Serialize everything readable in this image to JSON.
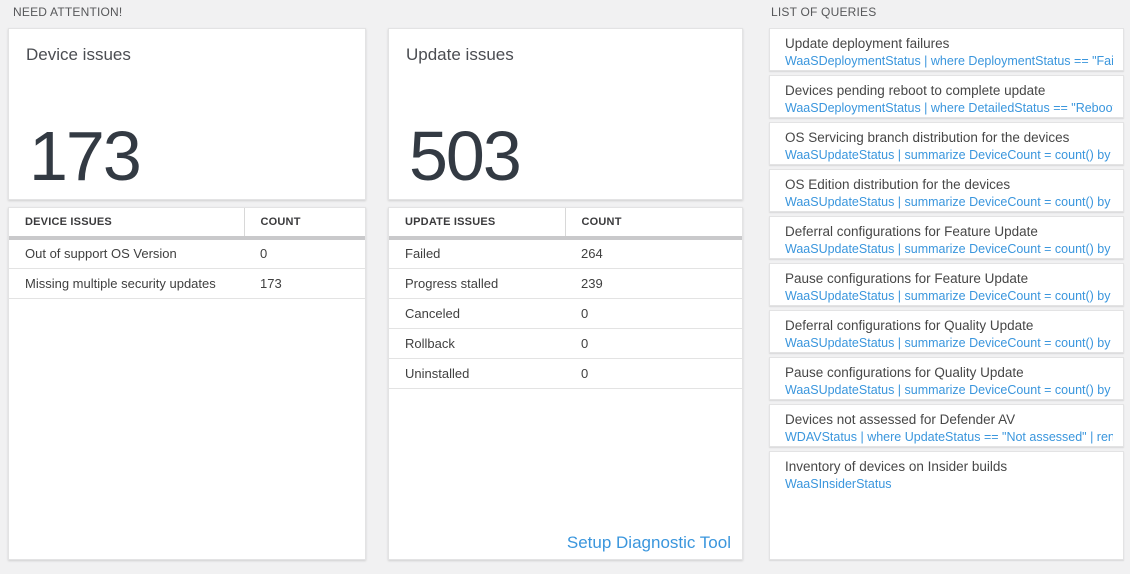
{
  "colors": {
    "link_blue": "#3a96dd",
    "big_number": "#333a43"
  },
  "sections": {
    "need_attention_label": "NEED ATTENTION!",
    "queries_label": "LIST OF QUERIES"
  },
  "device_card": {
    "title": "Device issues",
    "value": "173",
    "table": {
      "headers": [
        "DEVICE ISSUES",
        "COUNT"
      ],
      "rows": [
        [
          "Out of support OS Version",
          "0"
        ],
        [
          "Missing multiple security updates",
          "173"
        ]
      ]
    }
  },
  "update_card": {
    "title": "Update issues",
    "value": "503",
    "table": {
      "headers": [
        "UPDATE ISSUES",
        "COUNT"
      ],
      "rows": [
        [
          "Failed",
          "264"
        ],
        [
          "Progress stalled",
          "239"
        ],
        [
          "Canceled",
          "0"
        ],
        [
          "Rollback",
          "0"
        ],
        [
          "Uninstalled",
          "0"
        ]
      ]
    },
    "link_label": "Setup Diagnostic Tool"
  },
  "queries": {
    "items": [
      {
        "title": "Update deployment failures",
        "query": "WaaSDeploymentStatus | where DeploymentStatus == \"Failed\" |..."
      },
      {
        "title": "Devices pending reboot to complete update",
        "query": "WaaSDeploymentStatus | where DetailedStatus == \"Reboot pend..."
      },
      {
        "title": "OS Servicing branch distribution for the devices",
        "query": "WaaSUpdateStatus | summarize DeviceCount = count() by OSSer..."
      },
      {
        "title": "OS Edition distribution for the devices",
        "query": "WaaSUpdateStatus | summarize DeviceCount = count() by OSEdit..."
      },
      {
        "title": "Deferral configurations for Feature Update",
        "query": "WaaSUpdateStatus | summarize DeviceCount = count() by Featur..."
      },
      {
        "title": "Pause configurations for Feature Update",
        "query": "WaaSUpdateStatus | summarize DeviceCount = count() by Featur..."
      },
      {
        "title": "Deferral configurations for Quality Update",
        "query": "WaaSUpdateStatus | summarize DeviceCount = count() by Qualit..."
      },
      {
        "title": "Pause configurations for Quality Update",
        "query": "WaaSUpdateStatus | summarize DeviceCount = count() by Qualit..."
      },
      {
        "title": "Devices not assessed for Defender AV",
        "query": "WDAVStatus | where UpdateStatus == \"Not assessed\" | render ta..."
      },
      {
        "title": "Inventory of devices on Insider builds",
        "query": "WaaSInsiderStatus"
      }
    ]
  }
}
